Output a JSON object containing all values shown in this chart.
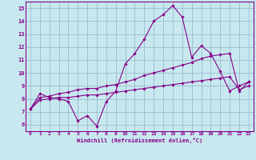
{
  "title": "",
  "xlabel": "Windchill (Refroidissement éolien,°C)",
  "ylabel": "",
  "bg_color": "#c8e8f0",
  "line_color": "#880088",
  "grid_color": "#99bbcc",
  "xlim": [
    -0.5,
    23.5
  ],
  "ylim": [
    5.5,
    15.5
  ],
  "xticks": [
    0,
    1,
    2,
    3,
    4,
    5,
    6,
    7,
    8,
    9,
    10,
    11,
    12,
    13,
    14,
    15,
    16,
    17,
    18,
    19,
    20,
    21,
    22,
    23
  ],
  "yticks": [
    6,
    7,
    8,
    9,
    10,
    11,
    12,
    13,
    14,
    15
  ],
  "line1": [
    7.2,
    8.4,
    8.1,
    8.0,
    7.8,
    6.3,
    6.7,
    5.9,
    7.8,
    8.6,
    10.7,
    11.5,
    12.6,
    14.0,
    14.5,
    15.2,
    14.3,
    11.2,
    12.1,
    11.5,
    10.1,
    8.6,
    9.0,
    9.3
  ],
  "line2": [
    7.2,
    8.1,
    8.2,
    8.4,
    8.5,
    8.7,
    8.8,
    8.8,
    9.0,
    9.1,
    9.3,
    9.5,
    9.8,
    10.0,
    10.2,
    10.4,
    10.6,
    10.8,
    11.1,
    11.3,
    11.4,
    11.5,
    8.6,
    9.3
  ],
  "line3": [
    7.2,
    7.9,
    8.0,
    8.1,
    8.1,
    8.2,
    8.3,
    8.3,
    8.4,
    8.5,
    8.6,
    8.7,
    8.8,
    8.9,
    9.0,
    9.1,
    9.2,
    9.3,
    9.4,
    9.5,
    9.6,
    9.7,
    8.7,
    9.0
  ]
}
